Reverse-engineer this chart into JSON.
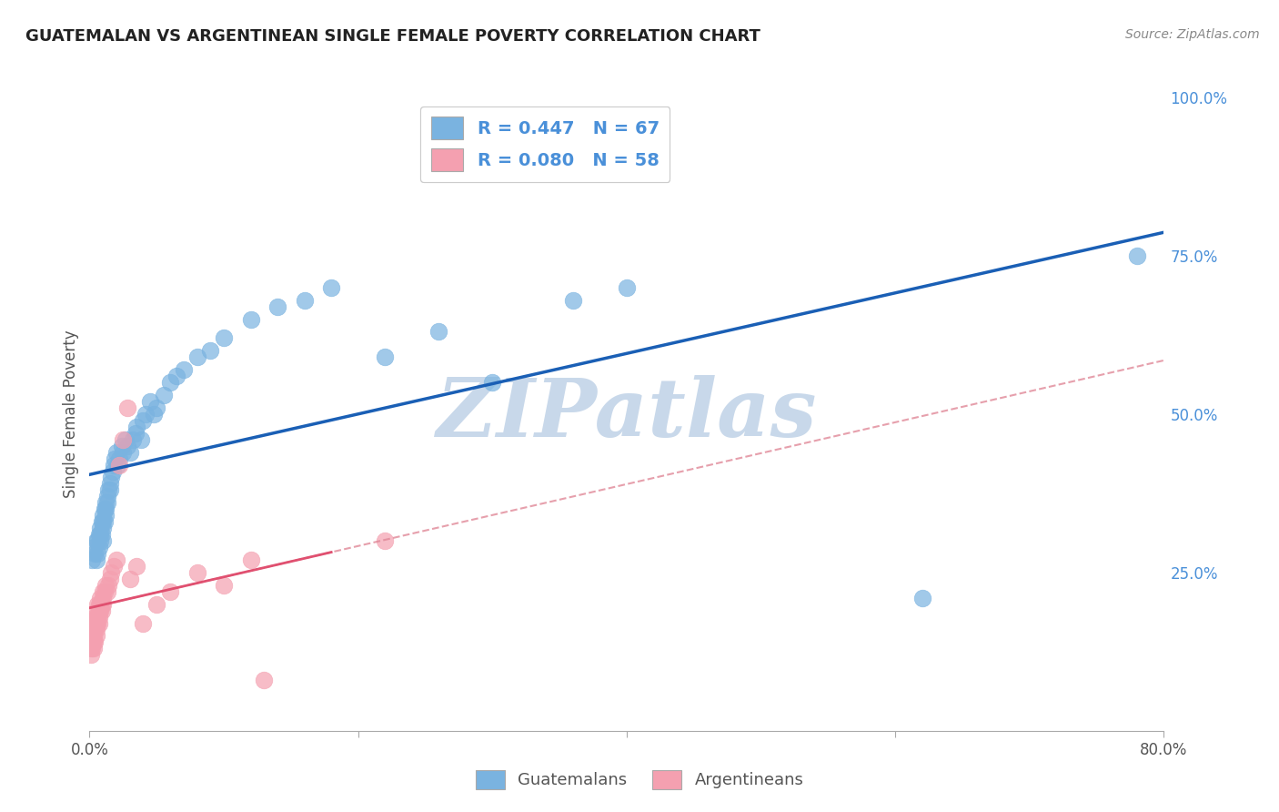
{
  "title": "GUATEMALAN VS ARGENTINEAN SINGLE FEMALE POVERTY CORRELATION CHART",
  "source": "Source: ZipAtlas.com",
  "ylabel": "Single Female Poverty",
  "xlim": [
    0.0,
    0.8
  ],
  "ylim": [
    0.0,
    1.0
  ],
  "yticks_right": [
    0.25,
    0.5,
    0.75,
    1.0
  ],
  "yticklabels_right": [
    "25.0%",
    "50.0%",
    "75.0%",
    "100.0%"
  ],
  "guatemalan_color": "#7ab3e0",
  "argentinean_color": "#f4a0b0",
  "guatemalan_line_color": "#1a5fb5",
  "argentinean_line_color": "#e08898",
  "guatemalan_R": 0.447,
  "guatemalan_N": 67,
  "argentinean_R": 0.08,
  "argentinean_N": 58,
  "background_color": "#ffffff",
  "grid_color": "#cccccc",
  "watermark_text": "ZIPatlas",
  "watermark_color": "#c8d8ea",
  "label_color_blue": "#4a90d9",
  "label_color_R": "#1a5fb5",
  "guatemalan_x": [
    0.002,
    0.003,
    0.004,
    0.005,
    0.005,
    0.006,
    0.006,
    0.007,
    0.007,
    0.008,
    0.008,
    0.008,
    0.009,
    0.009,
    0.01,
    0.01,
    0.01,
    0.01,
    0.011,
    0.011,
    0.012,
    0.012,
    0.012,
    0.013,
    0.013,
    0.014,
    0.015,
    0.015,
    0.016,
    0.017,
    0.018,
    0.019,
    0.02,
    0.021,
    0.022,
    0.024,
    0.025,
    0.027,
    0.028,
    0.03,
    0.032,
    0.034,
    0.035,
    0.038,
    0.04,
    0.042,
    0.045,
    0.048,
    0.05,
    0.055,
    0.06,
    0.065,
    0.07,
    0.08,
    0.09,
    0.1,
    0.12,
    0.14,
    0.16,
    0.18,
    0.22,
    0.26,
    0.3,
    0.36,
    0.4,
    0.62,
    0.78
  ],
  "guatemalan_y": [
    0.27,
    0.29,
    0.28,
    0.3,
    0.27,
    0.3,
    0.28,
    0.31,
    0.29,
    0.31,
    0.32,
    0.3,
    0.33,
    0.31,
    0.34,
    0.33,
    0.32,
    0.3,
    0.35,
    0.33,
    0.36,
    0.35,
    0.34,
    0.37,
    0.36,
    0.38,
    0.39,
    0.38,
    0.4,
    0.41,
    0.42,
    0.43,
    0.44,
    0.42,
    0.43,
    0.45,
    0.44,
    0.46,
    0.45,
    0.44,
    0.46,
    0.47,
    0.48,
    0.46,
    0.49,
    0.5,
    0.52,
    0.5,
    0.51,
    0.53,
    0.55,
    0.56,
    0.57,
    0.59,
    0.6,
    0.62,
    0.65,
    0.67,
    0.68,
    0.7,
    0.59,
    0.63,
    0.55,
    0.68,
    0.7,
    0.21,
    0.75
  ],
  "argentinean_x": [
    0.001,
    0.001,
    0.002,
    0.002,
    0.002,
    0.003,
    0.003,
    0.003,
    0.003,
    0.003,
    0.003,
    0.004,
    0.004,
    0.004,
    0.004,
    0.005,
    0.005,
    0.005,
    0.005,
    0.005,
    0.005,
    0.005,
    0.006,
    0.006,
    0.006,
    0.007,
    0.007,
    0.007,
    0.007,
    0.008,
    0.008,
    0.008,
    0.009,
    0.009,
    0.01,
    0.01,
    0.01,
    0.011,
    0.012,
    0.013,
    0.014,
    0.015,
    0.016,
    0.018,
    0.02,
    0.022,
    0.025,
    0.028,
    0.03,
    0.035,
    0.04,
    0.05,
    0.06,
    0.08,
    0.1,
    0.12,
    0.13,
    0.22
  ],
  "argentinean_y": [
    0.13,
    0.12,
    0.14,
    0.15,
    0.13,
    0.16,
    0.14,
    0.15,
    0.16,
    0.17,
    0.13,
    0.17,
    0.18,
    0.16,
    0.14,
    0.17,
    0.18,
    0.16,
    0.15,
    0.19,
    0.18,
    0.17,
    0.2,
    0.18,
    0.17,
    0.19,
    0.2,
    0.18,
    0.17,
    0.2,
    0.19,
    0.21,
    0.2,
    0.19,
    0.22,
    0.21,
    0.2,
    0.22,
    0.23,
    0.22,
    0.23,
    0.24,
    0.25,
    0.26,
    0.27,
    0.42,
    0.46,
    0.51,
    0.24,
    0.26,
    0.17,
    0.2,
    0.22,
    0.25,
    0.23,
    0.27,
    0.08,
    0.3
  ]
}
